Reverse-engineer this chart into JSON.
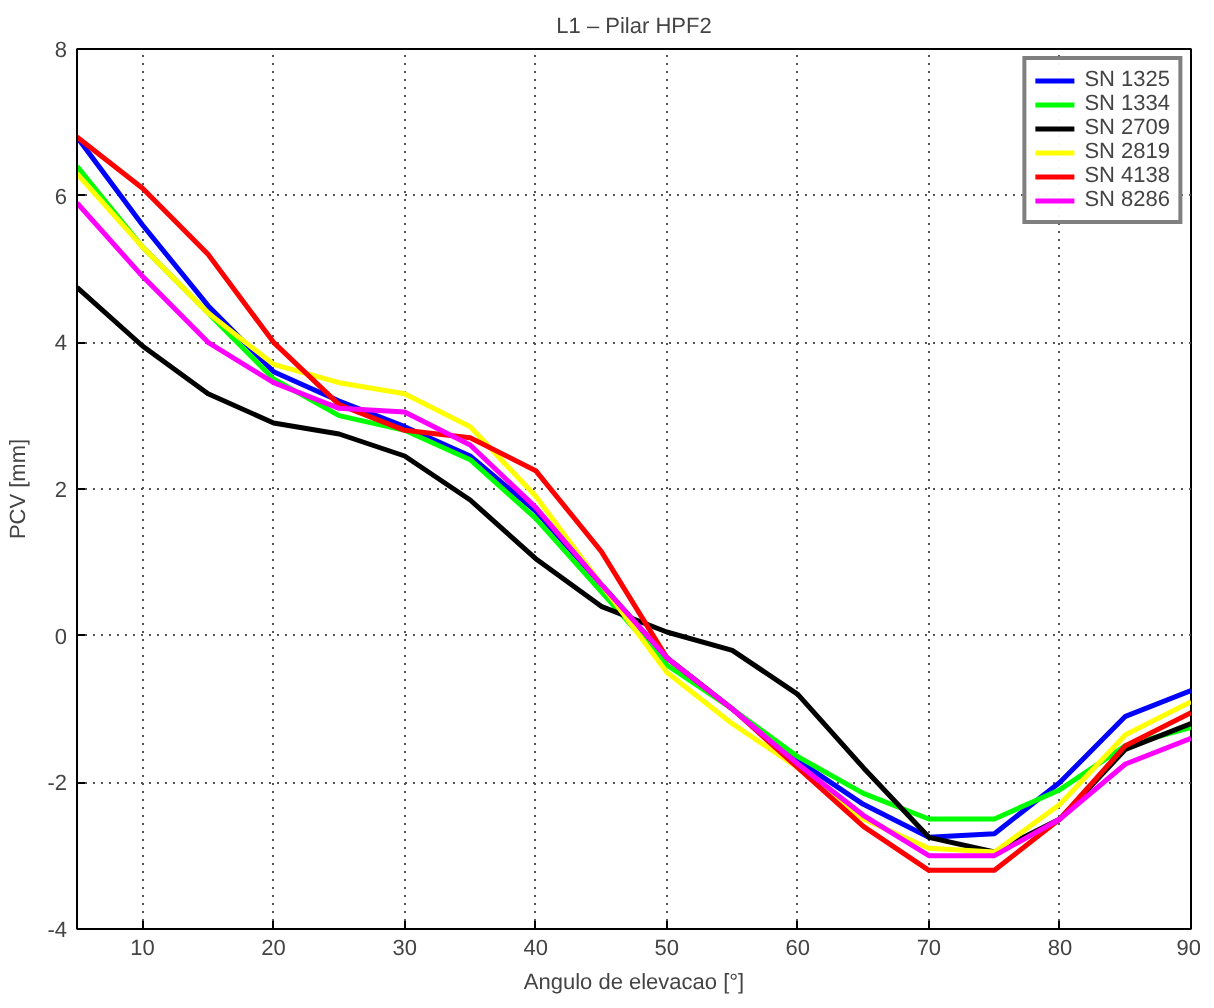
{
  "chart_data": {
    "type": "line",
    "title": "L1 – Pilar HPF2",
    "xlabel": "Angulo de elevacao [°]",
    "ylabel": "PCV [mm]",
    "x": [
      5,
      10,
      15,
      20,
      25,
      30,
      35,
      40,
      45,
      50,
      55,
      60,
      65,
      70,
      75,
      80,
      85,
      90
    ],
    "xlim": [
      5,
      90
    ],
    "xticks": [
      10,
      20,
      30,
      40,
      50,
      60,
      70,
      80,
      90
    ],
    "ylim": [
      -4,
      8
    ],
    "yticks": [
      -4,
      -2,
      0,
      2,
      4,
      6,
      8
    ],
    "grid": true,
    "legend": "top right",
    "marker": "none",
    "line_style": "solid",
    "series": [
      {
        "name": "SN 1325",
        "color": "#0000ff",
        "values": [
          6.8,
          5.6,
          4.5,
          3.6,
          3.2,
          2.85,
          2.45,
          1.7,
          0.7,
          -0.3,
          -1.0,
          -1.7,
          -2.3,
          -2.75,
          -2.7,
          -2.0,
          -1.1,
          -0.75
        ]
      },
      {
        "name": "SN 1334",
        "color": "#00ff00",
        "values": [
          6.4,
          5.3,
          4.4,
          3.5,
          3.0,
          2.8,
          2.4,
          1.6,
          0.6,
          -0.4,
          -1.0,
          -1.65,
          -2.15,
          -2.5,
          -2.5,
          -2.1,
          -1.5,
          -1.25
        ]
      },
      {
        "name": "SN 2709",
        "color": "#000000",
        "values": [
          4.75,
          3.95,
          3.3,
          2.9,
          2.75,
          2.45,
          1.85,
          1.05,
          0.4,
          0.05,
          -0.2,
          -0.8,
          -1.8,
          -2.75,
          -2.95,
          -2.5,
          -1.55,
          -1.2
        ]
      },
      {
        "name": "SN 2819",
        "color": "#ffff00",
        "values": [
          6.3,
          5.3,
          4.4,
          3.7,
          3.45,
          3.3,
          2.85,
          1.9,
          0.7,
          -0.5,
          -1.2,
          -1.8,
          -2.5,
          -2.9,
          -2.95,
          -2.3,
          -1.35,
          -0.9
        ]
      },
      {
        "name": "SN 4138",
        "color": "#ff0000",
        "values": [
          6.8,
          6.1,
          5.2,
          4.0,
          3.15,
          2.8,
          2.7,
          2.25,
          1.15,
          -0.3,
          -1.0,
          -1.8,
          -2.6,
          -3.2,
          -3.2,
          -2.5,
          -1.5,
          -1.05
        ]
      },
      {
        "name": "SN 8286",
        "color": "#ff00ff",
        "values": [
          5.9,
          4.9,
          4.0,
          3.45,
          3.1,
          3.05,
          2.6,
          1.75,
          0.7,
          -0.3,
          -1.0,
          -1.75,
          -2.45,
          -3.0,
          -3.0,
          -2.5,
          -1.75,
          -1.4
        ]
      }
    ]
  }
}
